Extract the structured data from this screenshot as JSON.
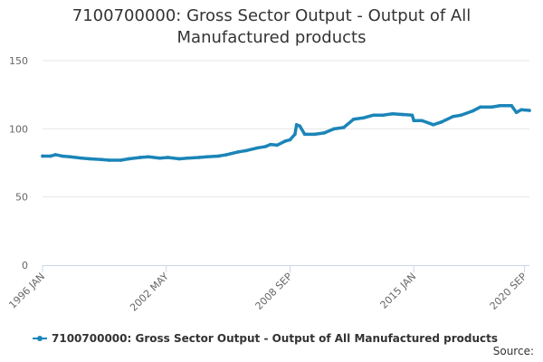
{
  "colors": {
    "series": "#1b85b8",
    "grid": "#e6e6e6",
    "axis": "#ccd6eb"
  },
  "title": {
    "line1": "7100700000: Gross Sector Output - Output of All",
    "line2": "Manufactured products"
  },
  "source": "Source:",
  "chart_data": {
    "type": "line",
    "title": "7100700000: Gross Sector Output - Output of All Manufactured products",
    "xlabel": "",
    "ylabel": "",
    "ylim": [
      0,
      150
    ],
    "yticks": [
      0,
      50,
      100,
      150
    ],
    "xrange": [
      "1996-01",
      "2020-12"
    ],
    "xticks": [
      {
        "label": "1996 JAN",
        "date": "1996-01"
      },
      {
        "label": "2002 MAY",
        "date": "2002-05"
      },
      {
        "label": "2008 SEP",
        "date": "2008-09"
      },
      {
        "label": "2015 JAN",
        "date": "2015-01"
      },
      {
        "label": "2020 SEP",
        "date": "2020-09"
      }
    ],
    "grid": true,
    "legend": "bottom",
    "series": [
      {
        "name": "7100700000: Gross Sector Output - Output of All Manufactured products",
        "points": [
          [
            "1996-01",
            80
          ],
          [
            "1996-06",
            80
          ],
          [
            "1996-09",
            81
          ],
          [
            "1997-01",
            80
          ],
          [
            "1997-06",
            79.5
          ],
          [
            "1998-01",
            78.5
          ],
          [
            "1998-06",
            78
          ],
          [
            "1999-01",
            77.5
          ],
          [
            "1999-06",
            77
          ],
          [
            "2000-01",
            77
          ],
          [
            "2000-06",
            78
          ],
          [
            "2001-01",
            79
          ],
          [
            "2001-06",
            79.5
          ],
          [
            "2002-01",
            78.5
          ],
          [
            "2002-06",
            79
          ],
          [
            "2003-01",
            78
          ],
          [
            "2003-06",
            78.5
          ],
          [
            "2004-01",
            79
          ],
          [
            "2004-06",
            79.5
          ],
          [
            "2005-01",
            80
          ],
          [
            "2005-06",
            81
          ],
          [
            "2006-01",
            83
          ],
          [
            "2006-06",
            84
          ],
          [
            "2007-01",
            86
          ],
          [
            "2007-06",
            87
          ],
          [
            "2007-09",
            88.5
          ],
          [
            "2008-01",
            88
          ],
          [
            "2008-06",
            91
          ],
          [
            "2008-09",
            92
          ],
          [
            "2008-12",
            96
          ],
          [
            "2009-01",
            103
          ],
          [
            "2009-03",
            102
          ],
          [
            "2009-06",
            96
          ],
          [
            "2009-12",
            96
          ],
          [
            "2010-06",
            97
          ],
          [
            "2010-12",
            100
          ],
          [
            "2011-06",
            101
          ],
          [
            "2011-12",
            107
          ],
          [
            "2012-06",
            108
          ],
          [
            "2012-12",
            110
          ],
          [
            "2013-06",
            110
          ],
          [
            "2013-12",
            111
          ],
          [
            "2014-06",
            110.5
          ],
          [
            "2014-12",
            110
          ],
          [
            "2015-01",
            106
          ],
          [
            "2015-06",
            106
          ],
          [
            "2016-01",
            103
          ],
          [
            "2016-06",
            105
          ],
          [
            "2017-01",
            109
          ],
          [
            "2017-06",
            110
          ],
          [
            "2018-01",
            113
          ],
          [
            "2018-06",
            116
          ],
          [
            "2019-01",
            116
          ],
          [
            "2019-06",
            117
          ],
          [
            "2020-01",
            117
          ],
          [
            "2020-04",
            112
          ],
          [
            "2020-07",
            114
          ],
          [
            "2020-12",
            113.5
          ]
        ]
      }
    ]
  }
}
